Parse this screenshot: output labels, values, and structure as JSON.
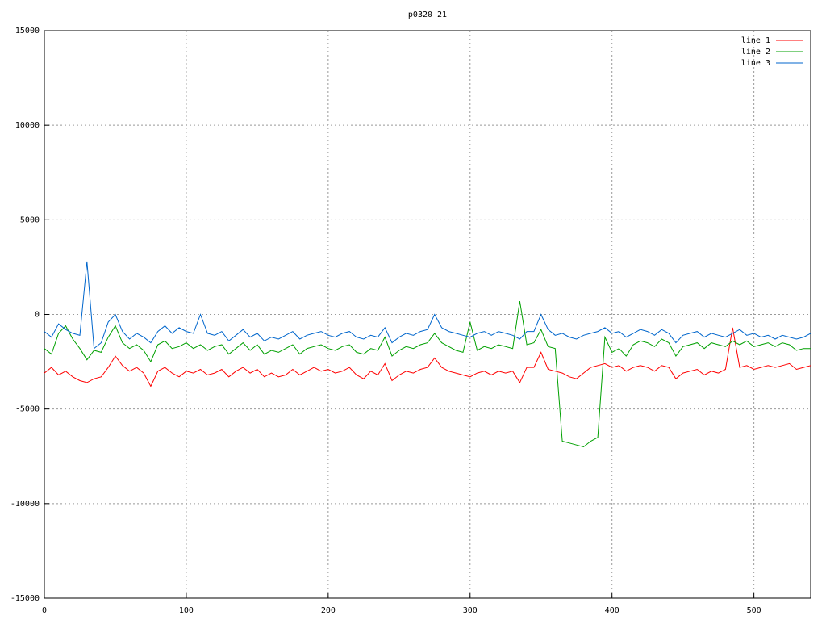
{
  "chart_data": {
    "type": "line",
    "title": "p0320_21",
    "x": [
      0,
      5,
      10,
      15,
      20,
      25,
      30,
      35,
      40,
      45,
      50,
      55,
      60,
      65,
      70,
      75,
      80,
      85,
      90,
      95,
      100,
      105,
      110,
      115,
      120,
      125,
      130,
      135,
      140,
      145,
      150,
      155,
      160,
      165,
      170,
      175,
      180,
      185,
      190,
      195,
      200,
      205,
      210,
      215,
      220,
      225,
      230,
      235,
      240,
      245,
      250,
      255,
      260,
      265,
      270,
      275,
      280,
      285,
      290,
      295,
      300,
      305,
      310,
      315,
      320,
      325,
      330,
      335,
      340,
      345,
      350,
      355,
      360,
      365,
      370,
      375,
      380,
      385,
      390,
      395,
      400,
      405,
      410,
      415,
      420,
      425,
      430,
      435,
      440,
      445,
      450,
      455,
      460,
      465,
      470,
      475,
      480,
      485,
      490,
      495,
      500,
      505,
      510,
      515,
      520,
      525,
      530,
      535,
      540
    ],
    "series": [
      {
        "name": "line 1",
        "color": "#ff0000",
        "values": [
          -3100,
          -2800,
          -3200,
          -3000,
          -3300,
          -3500,
          -3600,
          -3400,
          -3300,
          -2800,
          -2200,
          -2700,
          -3000,
          -2800,
          -3100,
          -3800,
          -3000,
          -2800,
          -3100,
          -3300,
          -3000,
          -3100,
          -2900,
          -3200,
          -3100,
          -2900,
          -3300,
          -3000,
          -2800,
          -3100,
          -2900,
          -3300,
          -3100,
          -3300,
          -3200,
          -2900,
          -3200,
          -3000,
          -2800,
          -3000,
          -2900,
          -3100,
          -3000,
          -2800,
          -3200,
          -3400,
          -3000,
          -3200,
          -2600,
          -3500,
          -3200,
          -3000,
          -3100,
          -2900,
          -2800,
          -2300,
          -2800,
          -3000,
          -3100,
          -3200,
          -3300,
          -3100,
          -3000,
          -3200,
          -3000,
          -3100,
          -3000,
          -3600,
          -2800,
          -2800,
          -2000,
          -2900,
          -3000,
          -3100,
          -3300,
          -3400,
          -3100,
          -2800,
          -2700,
          -2600,
          -2800,
          -2700,
          -3000,
          -2800,
          -2700,
          -2800,
          -3000,
          -2700,
          -2800,
          -3400,
          -3100,
          -3000,
          -2900,
          -3200,
          -3000,
          -3100,
          -2900,
          -700,
          -2800,
          -2700,
          -2900,
          -2800,
          -2700,
          -2800,
          -2700,
          -2600,
          -2900,
          -2800,
          -2700
        ]
      },
      {
        "name": "line 2",
        "color": "#00a000",
        "values": [
          -1800,
          -2100,
          -1000,
          -600,
          -1300,
          -1800,
          -2400,
          -1900,
          -2000,
          -1200,
          -600,
          -1500,
          -1800,
          -1600,
          -1900,
          -2500,
          -1600,
          -1400,
          -1800,
          -1700,
          -1500,
          -1800,
          -1600,
          -1900,
          -1700,
          -1600,
          -2100,
          -1800,
          -1500,
          -1900,
          -1600,
          -2100,
          -1900,
          -2000,
          -1800,
          -1600,
          -2100,
          -1800,
          -1700,
          -1600,
          -1800,
          -1900,
          -1700,
          -1600,
          -2000,
          -2100,
          -1800,
          -1900,
          -1200,
          -2200,
          -1900,
          -1700,
          -1800,
          -1600,
          -1500,
          -1000,
          -1500,
          -1700,
          -1900,
          -2000,
          -400,
          -1900,
          -1700,
          -1800,
          -1600,
          -1700,
          -1800,
          700,
          -1600,
          -1500,
          -800,
          -1700,
          -1800,
          -6700,
          -6800,
          -6900,
          -7000,
          -6700,
          -6500,
          -1200,
          -2000,
          -1800,
          -2200,
          -1600,
          -1400,
          -1500,
          -1700,
          -1300,
          -1500,
          -2200,
          -1700,
          -1600,
          -1500,
          -1800,
          -1500,
          -1600,
          -1700,
          -1400,
          -1600,
          -1400,
          -1700,
          -1600,
          -1500,
          -1700,
          -1500,
          -1600,
          -1900,
          -1800,
          -1800
        ]
      },
      {
        "name": "line 3",
        "color": "#0066cc",
        "values": [
          -900,
          -1200,
          -500,
          -800,
          -1000,
          -1100,
          2800,
          -1800,
          -1500,
          -400,
          0,
          -900,
          -1300,
          -1000,
          -1200,
          -1500,
          -900,
          -600,
          -1000,
          -700,
          -900,
          -1000,
          0,
          -1000,
          -1100,
          -900,
          -1400,
          -1100,
          -800,
          -1200,
          -1000,
          -1400,
          -1200,
          -1300,
          -1100,
          -900,
          -1300,
          -1100,
          -1000,
          -900,
          -1100,
          -1200,
          -1000,
          -900,
          -1200,
          -1300,
          -1100,
          -1200,
          -700,
          -1500,
          -1200,
          -1000,
          -1100,
          -900,
          -800,
          0,
          -700,
          -900,
          -1000,
          -1100,
          -1200,
          -1000,
          -900,
          -1100,
          -900,
          -1000,
          -1100,
          -1300,
          -900,
          -900,
          0,
          -800,
          -1100,
          -1000,
          -1200,
          -1300,
          -1100,
          -1000,
          -900,
          -700,
          -1000,
          -900,
          -1200,
          -1000,
          -800,
          -900,
          -1100,
          -800,
          -1000,
          -1500,
          -1100,
          -1000,
          -900,
          -1200,
          -1000,
          -1100,
          -1200,
          -1000,
          -800,
          -1100,
          -1000,
          -1200,
          -1100,
          -1300,
          -1100,
          -1200,
          -1300,
          -1200,
          -1000
        ]
      }
    ],
    "xlim": [
      0,
      540
    ],
    "xticks": [
      0,
      100,
      200,
      300,
      400,
      500
    ],
    "ylim": [
      -15000,
      15000
    ],
    "yticks": [
      -15000,
      -10000,
      -5000,
      0,
      5000,
      10000,
      15000
    ],
    "grid": true,
    "legend": "top-right"
  }
}
